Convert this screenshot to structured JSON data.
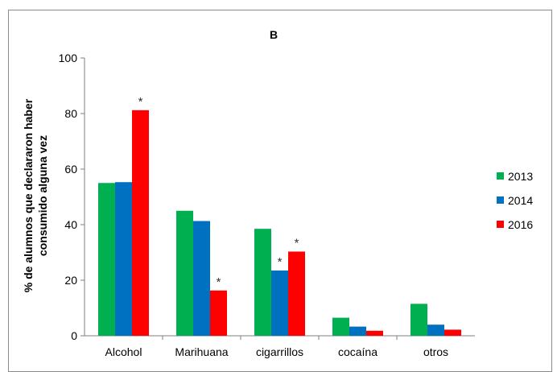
{
  "chart_data": {
    "type": "bar",
    "title": "B",
    "ylabel_lines": [
      "% de alumnos que declararon haber",
      "consumido alguna vez"
    ],
    "xlabel": "",
    "ylim": [
      0,
      100
    ],
    "yticks": [
      0,
      20,
      40,
      60,
      80,
      100
    ],
    "grid": false,
    "legend_position": "right",
    "categories": [
      "Alcohol",
      "Marihuana",
      "cigarrillos",
      "cocaína",
      "otros"
    ],
    "series": [
      {
        "name": "2013",
        "color": "#00b050",
        "values": [
          55,
          45,
          38.5,
          6.5,
          11.5
        ],
        "significant": [
          false,
          false,
          false,
          false,
          false
        ]
      },
      {
        "name": "2014",
        "color": "#0070c0",
        "values": [
          55.3,
          41.3,
          23.5,
          3.3,
          4.0
        ],
        "significant": [
          false,
          false,
          true,
          false,
          false
        ]
      },
      {
        "name": "2016",
        "color": "#ff0000",
        "values": [
          81.2,
          16.3,
          30.3,
          1.8,
          2.2
        ],
        "significant": [
          true,
          true,
          true,
          false,
          false
        ]
      }
    ],
    "significance_marker": "*"
  }
}
